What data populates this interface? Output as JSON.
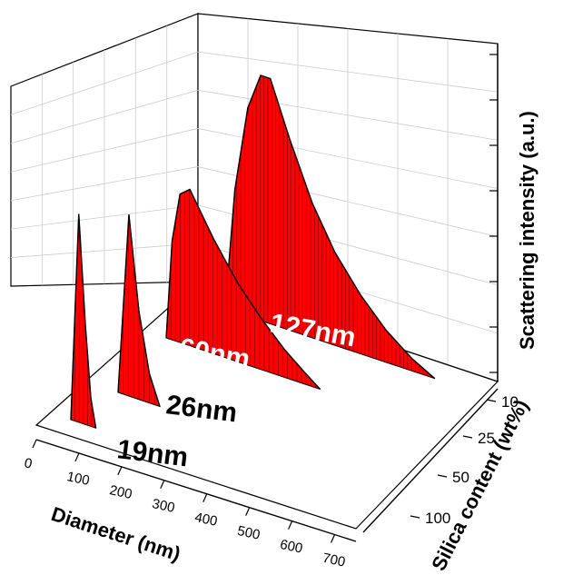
{
  "chart_data": {
    "type": "area",
    "xlabel": "Diameter (nm)",
    "ylabel": "Scattering intensity (a.u.)",
    "zlabel": "Silica content (wt%)",
    "x_ticks": [
      "0",
      "100",
      "200",
      "300",
      "400",
      "500",
      "600",
      "700"
    ],
    "xlim": [
      0,
      750
    ],
    "z_ticks": [
      "10",
      "25",
      "50",
      "100"
    ],
    "series_color": "#ff0000",
    "series": [
      {
        "name": "19nm",
        "silica_wt": "100",
        "peak_diameter": 19,
        "peak_height": 0.74,
        "tail_end": 60,
        "label_color": "#000000",
        "curve": [
          [
            0,
            0
          ],
          [
            19,
            0.74
          ],
          [
            35,
            0.35
          ],
          [
            48,
            0.1
          ],
          [
            60,
            0
          ]
        ]
      },
      {
        "name": "26nm",
        "silica_wt": "50",
        "peak_diameter": 26,
        "peak_height": 0.74,
        "tail_end": 100,
        "label_color": "#000000",
        "curve": [
          [
            0,
            0
          ],
          [
            26,
            0.74
          ],
          [
            50,
            0.36
          ],
          [
            75,
            0.12
          ],
          [
            100,
            0
          ]
        ]
      },
      {
        "name": "60nm",
        "silica_wt": "25",
        "peak_diameter": 60,
        "peak_height": 0.79,
        "tail_end": 390,
        "label_color": "#ffffff",
        "curve": [
          [
            0,
            0
          ],
          [
            15,
            0.5
          ],
          [
            35,
            0.75
          ],
          [
            60,
            0.79
          ],
          [
            120,
            0.58
          ],
          [
            180,
            0.4
          ],
          [
            240,
            0.26
          ],
          [
            300,
            0.14
          ],
          [
            350,
            0.06
          ],
          [
            390,
            0
          ]
        ]
      },
      {
        "name": "127nm",
        "silica_wt": "10",
        "peak_diameter": 127,
        "peak_height": 1.0,
        "tail_end": 650,
        "label_color": "#ffffff",
        "curve": [
          [
            0,
            0
          ],
          [
            30,
            0.5
          ],
          [
            70,
            0.85
          ],
          [
            110,
            1.0
          ],
          [
            140,
            1.0
          ],
          [
            200,
            0.78
          ],
          [
            270,
            0.55
          ],
          [
            340,
            0.38
          ],
          [
            420,
            0.24
          ],
          [
            500,
            0.13
          ],
          [
            580,
            0.05
          ],
          [
            650,
            0
          ]
        ]
      }
    ]
  }
}
